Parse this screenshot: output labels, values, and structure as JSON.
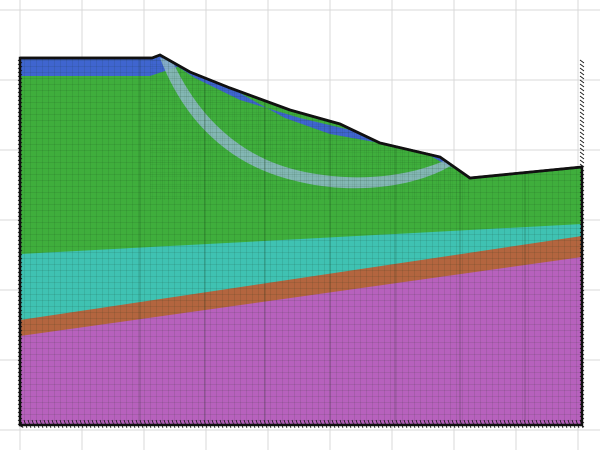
{
  "diagram": {
    "type": "slope-stability-fe-mesh",
    "layers": [
      {
        "name": "top-soil-layer",
        "color": "#3f65cf"
      },
      {
        "name": "main-clay-layer",
        "color": "#3fae3c"
      },
      {
        "name": "sand-layer",
        "color": "#3fc2b2"
      },
      {
        "name": "weak-seam-layer",
        "color": "#b3653f"
      },
      {
        "name": "bedrock-layer",
        "color": "#b761bd"
      },
      {
        "name": "slip-band",
        "color": "#8fb8c8"
      }
    ],
    "mesh_line_color": "#1e3a1e",
    "boundary_color": "#111111",
    "grid_color": "#d9d9d9"
  }
}
